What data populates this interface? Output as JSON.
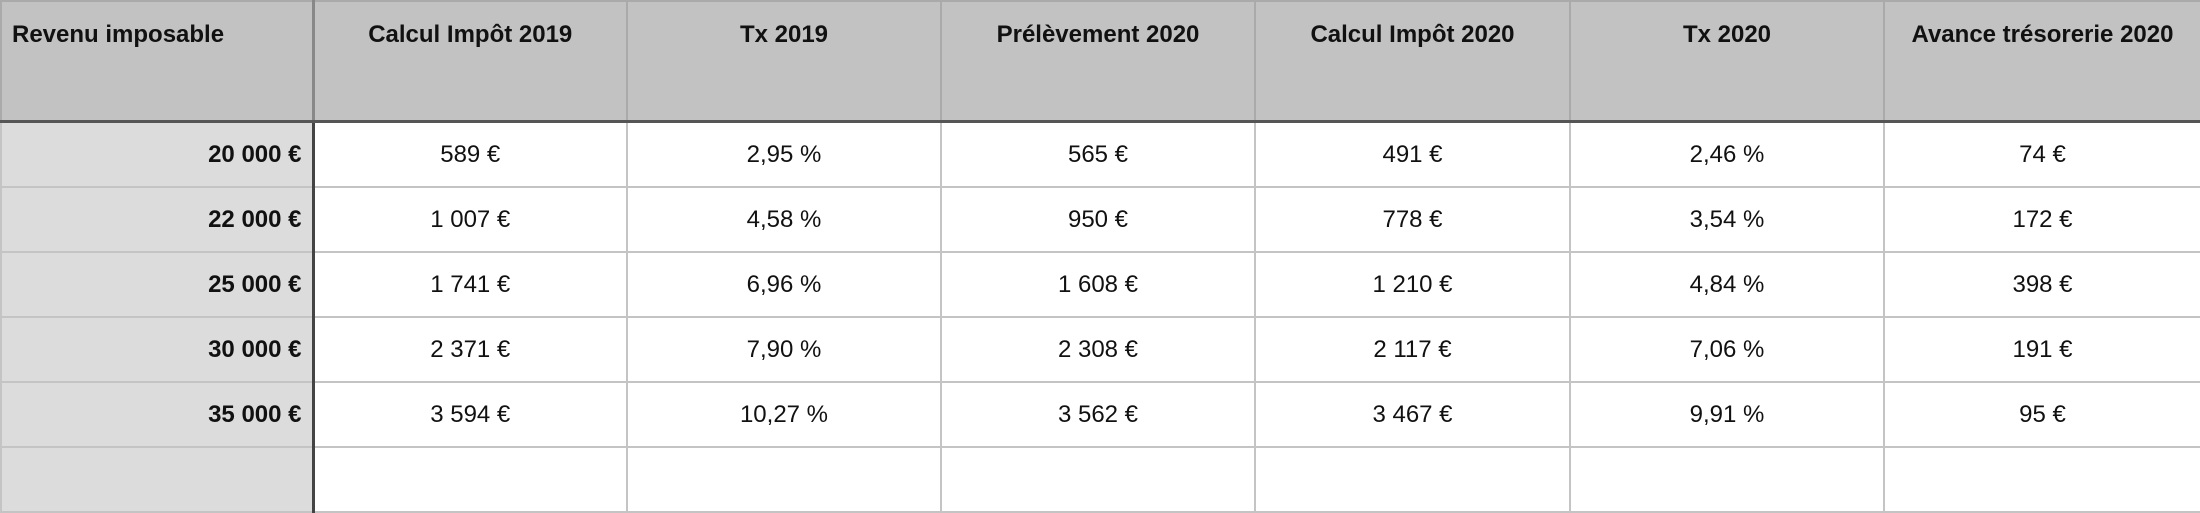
{
  "headers": [
    "Revenu imposable",
    "Calcul Impôt 2019",
    "Tx 2019",
    "Prélèvement 2020",
    "Calcul Impôt 2020",
    "Tx 2020",
    "Avance trésorerie 2020"
  ],
  "rows": [
    [
      "20 000 €",
      "589 €",
      "2,95 %",
      "565 €",
      "491 €",
      "2,46 %",
      "74 €"
    ],
    [
      "22 000 €",
      "1 007 €",
      "4,58 %",
      "950 €",
      "778 €",
      "3,54 %",
      "172 €"
    ],
    [
      "25 000 €",
      "1 741 €",
      "6,96 %",
      "1 608 €",
      "1 210 €",
      "4,84 %",
      "398 €"
    ],
    [
      "30 000 €",
      "2 371 €",
      "7,90 %",
      "2 308 €",
      "2 117 €",
      "7,06 %",
      "191 €"
    ],
    [
      "35 000 €",
      "3 594 €",
      "10,27 %",
      "3 562 €",
      "3 467 €",
      "9,91 %",
      "95 €"
    ]
  ]
}
